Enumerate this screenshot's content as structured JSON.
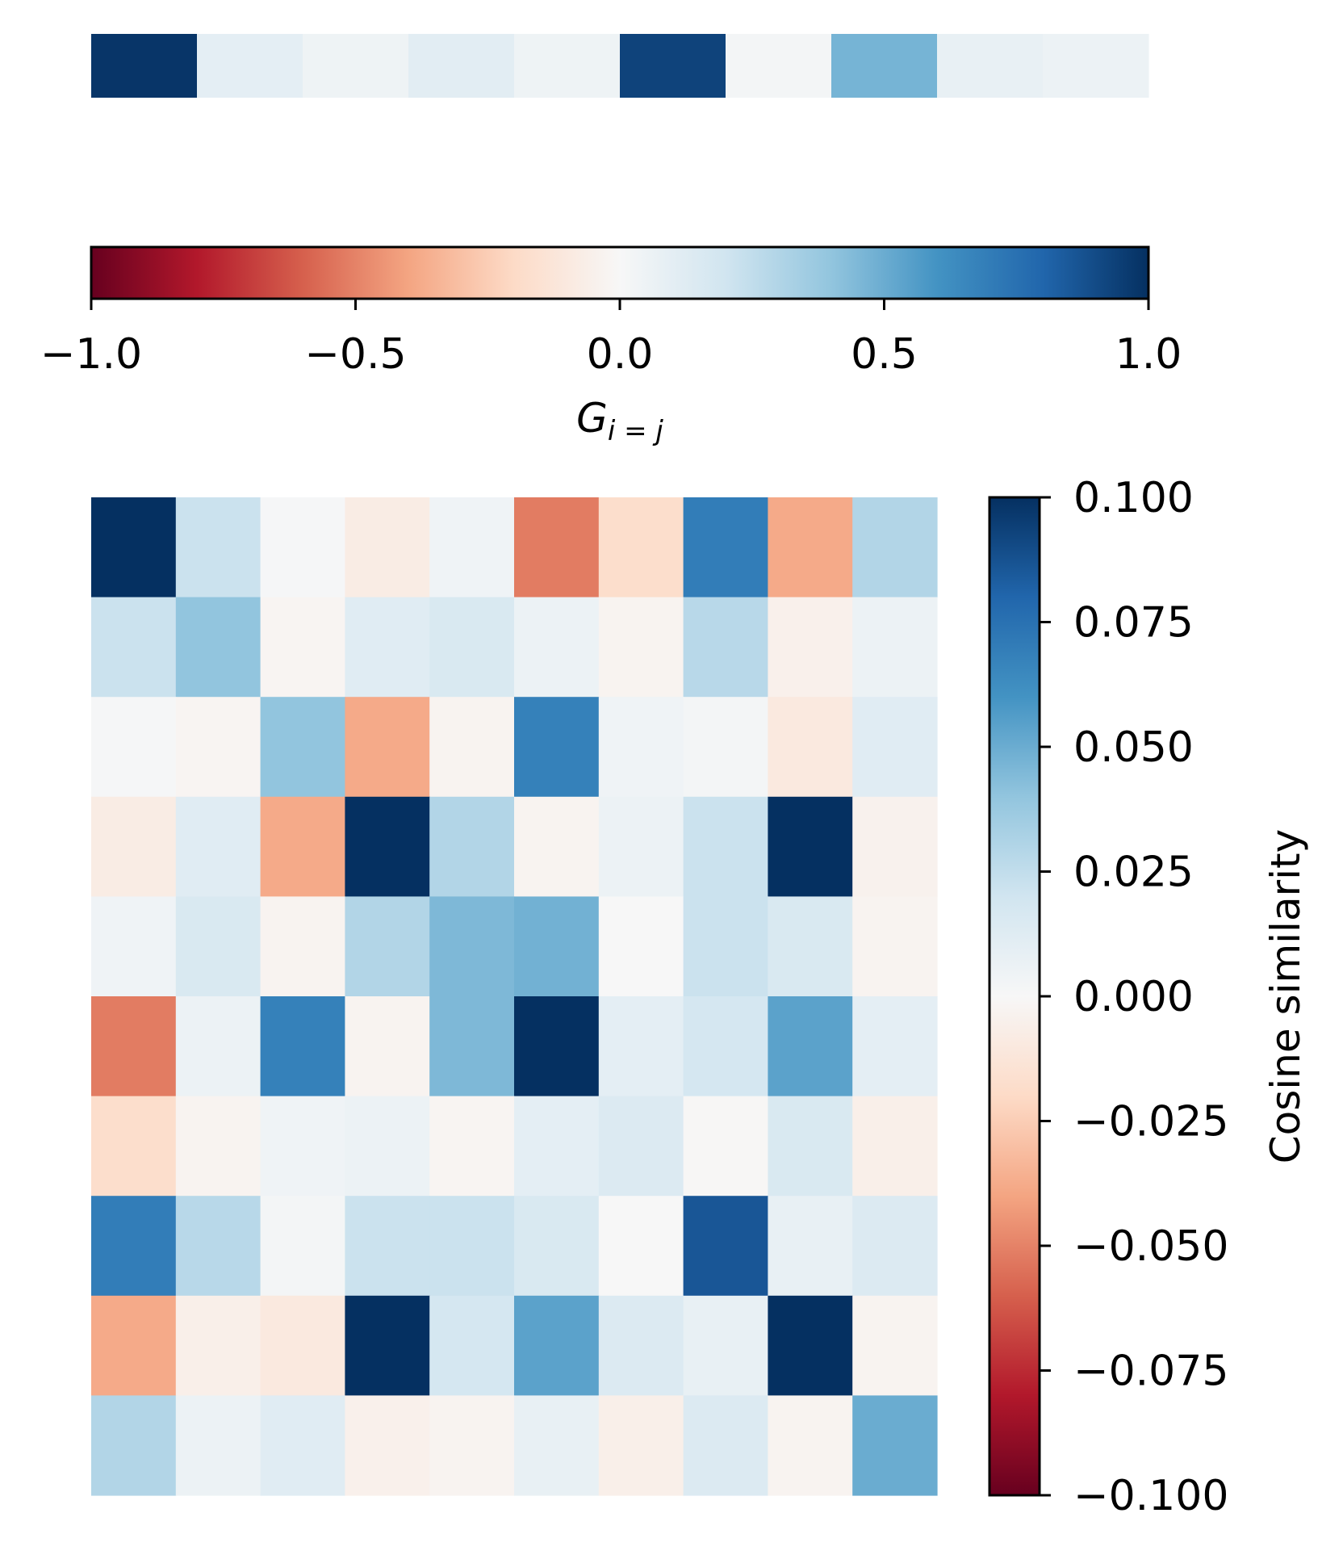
{
  "chart_data": [
    {
      "type": "heatmap",
      "name": "diagonal-strip",
      "rows": 1,
      "cols": 10,
      "values": [
        [
          0.98,
          0.1,
          0.05,
          0.11,
          0.05,
          0.93,
          0.02,
          0.47,
          0.08,
          0.06
        ]
      ],
      "colormap": "RdBu",
      "vmin": -1.0,
      "vmax": 1.0
    },
    {
      "type": "heatmap",
      "name": "gram-matrix",
      "rows": 10,
      "cols": 10,
      "colormap": "RdBu",
      "vmin": -0.1,
      "vmax": 0.1,
      "values": [
        [
          0.1,
          0.022,
          0.001,
          -0.008,
          0.004,
          -0.052,
          -0.018,
          0.07,
          -0.038,
          0.03
        ],
        [
          0.022,
          0.04,
          -0.002,
          0.012,
          0.016,
          0.006,
          -0.003,
          0.028,
          -0.005,
          0.006
        ],
        [
          0.001,
          -0.002,
          0.04,
          -0.038,
          -0.003,
          0.068,
          0.004,
          0.002,
          -0.01,
          0.012
        ],
        [
          -0.008,
          0.012,
          -0.038,
          0.1,
          0.03,
          -0.003,
          0.006,
          0.022,
          0.1,
          -0.004
        ],
        [
          0.004,
          0.016,
          -0.003,
          0.03,
          0.045,
          0.048,
          0.0,
          0.022,
          0.016,
          -0.003
        ],
        [
          -0.052,
          0.006,
          0.068,
          -0.003,
          0.045,
          0.1,
          0.01,
          0.018,
          0.054,
          0.01
        ],
        [
          -0.018,
          -0.003,
          0.004,
          0.006,
          -0.002,
          0.01,
          0.014,
          -0.001,
          0.016,
          -0.006
        ],
        [
          0.07,
          0.028,
          0.002,
          0.022,
          0.022,
          0.016,
          0.0,
          0.086,
          0.008,
          0.014
        ],
        [
          -0.038,
          -0.006,
          -0.01,
          0.1,
          0.018,
          0.054,
          0.014,
          0.008,
          0.1,
          -0.003
        ],
        [
          0.03,
          0.006,
          0.012,
          -0.005,
          -0.003,
          0.008,
          -0.006,
          0.014,
          -0.003,
          0.05
        ]
      ]
    }
  ],
  "horizontal_colorbar": {
    "ticks": [
      "−1.0",
      "−0.5",
      "0.0",
      "0.5",
      "1.0"
    ],
    "tick_values": [
      -1.0,
      -0.5,
      0.0,
      0.5,
      1.0
    ],
    "label_base": "G",
    "label_sub": "i = j"
  },
  "vertical_colorbar": {
    "ticks": [
      "0.100",
      "0.075",
      "0.050",
      "0.025",
      "0.000",
      "−0.025",
      "−0.050",
      "−0.075",
      "−0.100"
    ],
    "tick_values": [
      0.1,
      0.075,
      0.05,
      0.025,
      0.0,
      -0.025,
      -0.05,
      -0.075,
      -0.1
    ],
    "label": "Cosine similarity"
  },
  "colors": {
    "rdbu": [
      "#67001f",
      "#b2182b",
      "#d6604d",
      "#f4a582",
      "#fddbc7",
      "#f7f7f7",
      "#d1e5f0",
      "#92c5de",
      "#4393c3",
      "#2166ac",
      "#053061"
    ]
  }
}
